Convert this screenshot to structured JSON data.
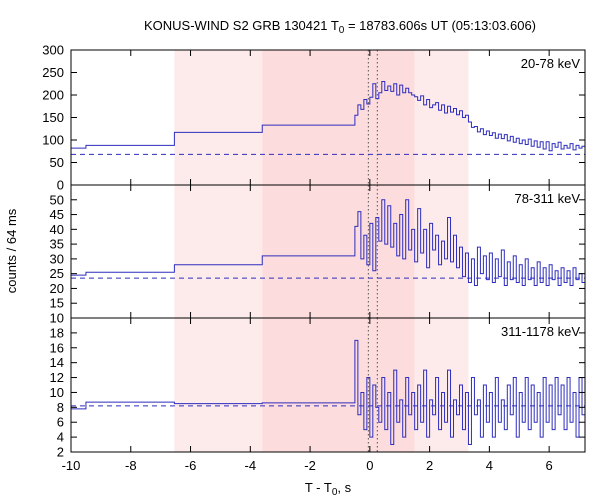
{
  "chart_data": {
    "type": "line",
    "title_parts": [
      "KONUS-WIND S2 GRB 130421 T",
      "0",
      " = 18783.606s UT (05:13:03.606)"
    ],
    "xlabel_parts": [
      "T - T",
      "0",
      ", s"
    ],
    "ylabel": "counts / 64 ms",
    "xlim": [
      -10,
      7.2
    ],
    "x_ticks": [
      -10,
      -8,
      -6,
      -4,
      -2,
      0,
      2,
      4,
      6
    ],
    "x_tick_labels": [
      "-10",
      "-8",
      "-6",
      "-4",
      "-2",
      "0",
      "2",
      "4",
      "6"
    ],
    "intervals": [
      {
        "start": -6.54,
        "end": -3.6,
        "fill": "#fdeaea"
      },
      {
        "start": -3.6,
        "end": 1.5,
        "fill": "#fcdcdc"
      },
      {
        "start": 1.5,
        "end": 3.3,
        "fill": "#fdeaea"
      }
    ],
    "markers": [
      -0.05,
      0.25
    ],
    "colors": {
      "series": "#2e2ebf",
      "background_line": "#2e2ebf",
      "marker": "#555555"
    },
    "panels": [
      {
        "label": "20-78 keV",
        "ylim": [
          0,
          300
        ],
        "y_ticks": [
          0,
          50,
          100,
          150,
          200,
          250,
          300
        ],
        "y_tick_labels": [
          "0",
          "50",
          "100",
          "150",
          "200",
          "250",
          "300"
        ],
        "background": 68,
        "coarse_steps": [
          [
            -10,
            82
          ],
          [
            -9.5,
            88
          ],
          [
            -6.54,
            117
          ],
          [
            -3.6,
            133
          ],
          [
            -0.5,
            133
          ]
        ],
        "series": [
          [
            -0.5,
            155
          ],
          [
            -0.4,
            178
          ],
          [
            -0.3,
            168
          ],
          [
            -0.2,
            190
          ],
          [
            -0.1,
            180
          ],
          [
            0.0,
            195
          ],
          [
            0.1,
            225
          ],
          [
            0.2,
            192
          ],
          [
            0.3,
            205
          ],
          [
            0.4,
            230
          ],
          [
            0.5,
            210
          ],
          [
            0.6,
            220
          ],
          [
            0.7,
            208
          ],
          [
            0.8,
            225
          ],
          [
            0.9,
            200
          ],
          [
            1.0,
            222
          ],
          [
            1.1,
            205
          ],
          [
            1.2,
            215
          ],
          [
            1.3,
            205
          ],
          [
            1.4,
            200
          ],
          [
            1.5,
            196
          ],
          [
            1.6,
            188
          ],
          [
            1.7,
            198
          ],
          [
            1.8,
            178
          ],
          [
            1.9,
            190
          ],
          [
            2.0,
            172
          ],
          [
            2.1,
            178
          ],
          [
            2.2,
            183
          ],
          [
            2.3,
            166
          ],
          [
            2.4,
            178
          ],
          [
            2.5,
            160
          ],
          [
            2.6,
            175
          ],
          [
            2.7,
            162
          ],
          [
            2.8,
            170
          ],
          [
            2.9,
            156
          ],
          [
            3.0,
            165
          ],
          [
            3.1,
            150
          ],
          [
            3.2,
            155
          ],
          [
            3.3,
            140
          ],
          [
            3.4,
            128
          ],
          [
            3.5,
            130
          ],
          [
            3.6,
            118
          ],
          [
            3.7,
            125
          ],
          [
            3.8,
            112
          ],
          [
            3.9,
            120
          ],
          [
            4.0,
            110
          ],
          [
            4.1,
            116
          ],
          [
            4.2,
            104
          ],
          [
            4.3,
            113
          ],
          [
            4.4,
            103
          ],
          [
            4.5,
            112
          ],
          [
            4.6,
            98
          ],
          [
            4.7,
            108
          ],
          [
            4.8,
            95
          ],
          [
            4.9,
            104
          ],
          [
            5.0,
            92
          ],
          [
            5.1,
            100
          ],
          [
            5.2,
            90
          ],
          [
            5.3,
            102
          ],
          [
            5.4,
            86
          ],
          [
            5.5,
            98
          ],
          [
            5.6,
            84
          ],
          [
            5.7,
            96
          ],
          [
            5.8,
            80
          ],
          [
            5.9,
            96
          ],
          [
            6.0,
            76
          ],
          [
            6.1,
            92
          ],
          [
            6.2,
            84
          ],
          [
            6.3,
            95
          ],
          [
            6.4,
            80
          ],
          [
            6.5,
            88
          ],
          [
            6.6,
            82
          ],
          [
            6.7,
            92
          ],
          [
            6.8,
            78
          ],
          [
            6.9,
            88
          ],
          [
            7.0,
            82
          ],
          [
            7.1,
            86
          ]
        ]
      },
      {
        "label": "78-311 keV",
        "ylim": [
          10,
          55
        ],
        "y_ticks": [
          10,
          15,
          20,
          25,
          30,
          35,
          40,
          45,
          50
        ],
        "y_tick_labels": [
          "10",
          "15",
          "20",
          "25",
          "30",
          "35",
          "40",
          "45",
          "50"
        ],
        "background": 23.5,
        "coarse_steps": [
          [
            -10,
            24.5
          ],
          [
            -9.5,
            25.5
          ],
          [
            -6.54,
            28
          ],
          [
            -3.6,
            31
          ],
          [
            -0.5,
            31
          ]
        ],
        "series": [
          [
            -0.5,
            41
          ],
          [
            -0.4,
            46
          ],
          [
            -0.3,
            30
          ],
          [
            -0.2,
            38
          ],
          [
            -0.1,
            28
          ],
          [
            0.0,
            42
          ],
          [
            0.1,
            26
          ],
          [
            0.2,
            44
          ],
          [
            0.3,
            36
          ],
          [
            0.4,
            50
          ],
          [
            0.5,
            35
          ],
          [
            0.6,
            48
          ],
          [
            0.7,
            34
          ],
          [
            0.8,
            42
          ],
          [
            0.9,
            31
          ],
          [
            1.0,
            45
          ],
          [
            1.1,
            30
          ],
          [
            1.2,
            50
          ],
          [
            1.3,
            33
          ],
          [
            1.4,
            40
          ],
          [
            1.5,
            29
          ],
          [
            1.6,
            47
          ],
          [
            1.7,
            32
          ],
          [
            1.8,
            40
          ],
          [
            1.9,
            27
          ],
          [
            2.0,
            42
          ],
          [
            2.1,
            33
          ],
          [
            2.2,
            38
          ],
          [
            2.3,
            28
          ],
          [
            2.4,
            36
          ],
          [
            2.5,
            30
          ],
          [
            2.6,
            44
          ],
          [
            2.7,
            29
          ],
          [
            2.8,
            38
          ],
          [
            2.9,
            27
          ],
          [
            3.0,
            34
          ],
          [
            3.1,
            24
          ],
          [
            3.2,
            32
          ],
          [
            3.3,
            22
          ],
          [
            3.4,
            30
          ],
          [
            3.5,
            21
          ],
          [
            3.6,
            34
          ],
          [
            3.7,
            25
          ],
          [
            3.8,
            31
          ],
          [
            3.9,
            23
          ],
          [
            4.0,
            32
          ],
          [
            4.1,
            22
          ],
          [
            4.2,
            30
          ],
          [
            4.3,
            24
          ],
          [
            4.4,
            33
          ],
          [
            4.5,
            21
          ],
          [
            4.6,
            29
          ],
          [
            4.7,
            23
          ],
          [
            4.8,
            31
          ],
          [
            4.9,
            22
          ],
          [
            5.0,
            28
          ],
          [
            5.1,
            21
          ],
          [
            5.2,
            30
          ],
          [
            5.3,
            23
          ],
          [
            5.4,
            27
          ],
          [
            5.5,
            21
          ],
          [
            5.6,
            29
          ],
          [
            5.7,
            22
          ],
          [
            5.8,
            27
          ],
          [
            5.9,
            21
          ],
          [
            6.0,
            28
          ],
          [
            6.1,
            23
          ],
          [
            6.2,
            26
          ],
          [
            6.3,
            21
          ],
          [
            6.4,
            27
          ],
          [
            6.5,
            22
          ],
          [
            6.6,
            26
          ],
          [
            6.7,
            21
          ],
          [
            6.8,
            27
          ],
          [
            6.9,
            23
          ],
          [
            7.0,
            25
          ],
          [
            7.1,
            22
          ]
        ]
      },
      {
        "label": "311-1178 keV",
        "ylim": [
          2,
          20
        ],
        "y_ticks": [
          2,
          4,
          6,
          8,
          10,
          12,
          14,
          16,
          18
        ],
        "y_tick_labels": [
          "2",
          "4",
          "6",
          "8",
          "10",
          "12",
          "14",
          "16",
          "18"
        ],
        "background": 8.2,
        "coarse_steps": [
          [
            -10,
            7.8
          ],
          [
            -9.5,
            8.7
          ],
          [
            -6.54,
            8.5
          ],
          [
            -3.6,
            8.6
          ],
          [
            -0.5,
            8.6
          ]
        ],
        "series": [
          [
            -0.5,
            17
          ],
          [
            -0.4,
            7
          ],
          [
            -0.3,
            10
          ],
          [
            -0.2,
            5
          ],
          [
            -0.1,
            12
          ],
          [
            0.0,
            4
          ],
          [
            0.1,
            11
          ],
          [
            0.2,
            8
          ],
          [
            0.3,
            6
          ],
          [
            0.4,
            12
          ],
          [
            0.5,
            5
          ],
          [
            0.6,
            10
          ],
          [
            0.7,
            3
          ],
          [
            0.8,
            13
          ],
          [
            0.9,
            6
          ],
          [
            1.0,
            9
          ],
          [
            1.1,
            4
          ],
          [
            1.2,
            12
          ],
          [
            1.3,
            7
          ],
          [
            1.4,
            10
          ],
          [
            1.5,
            5
          ],
          [
            1.6,
            11
          ],
          [
            1.7,
            6
          ],
          [
            1.8,
            13
          ],
          [
            1.9,
            4
          ],
          [
            2.0,
            9
          ],
          [
            2.1,
            7
          ],
          [
            2.2,
            12
          ],
          [
            2.3,
            5
          ],
          [
            2.4,
            10
          ],
          [
            2.5,
            6
          ],
          [
            2.6,
            13
          ],
          [
            2.7,
            4
          ],
          [
            2.8,
            9
          ],
          [
            2.9,
            7
          ],
          [
            3.0,
            11
          ],
          [
            3.1,
            5
          ],
          [
            3.2,
            10
          ],
          [
            3.3,
            3
          ],
          [
            3.4,
            12
          ],
          [
            3.5,
            7
          ],
          [
            3.6,
            9
          ],
          [
            3.7,
            4
          ],
          [
            3.8,
            11
          ],
          [
            3.9,
            6
          ],
          [
            4.0,
            10
          ],
          [
            4.1,
            4
          ],
          [
            4.2,
            12
          ],
          [
            4.3,
            6
          ],
          [
            4.4,
            9
          ],
          [
            4.5,
            5
          ],
          [
            4.6,
            11
          ],
          [
            4.7,
            7
          ],
          [
            4.8,
            12
          ],
          [
            4.9,
            4
          ],
          [
            5.0,
            10
          ],
          [
            5.1,
            6
          ],
          [
            5.2,
            12
          ],
          [
            5.3,
            5
          ],
          [
            5.4,
            11
          ],
          [
            5.5,
            6
          ],
          [
            5.6,
            10
          ],
          [
            5.7,
            4
          ],
          [
            5.8,
            12
          ],
          [
            5.9,
            6
          ],
          [
            6.0,
            11
          ],
          [
            6.1,
            5
          ],
          [
            6.2,
            12
          ],
          [
            6.3,
            7
          ],
          [
            6.4,
            11
          ],
          [
            6.5,
            5
          ],
          [
            6.6,
            12
          ],
          [
            6.7,
            6
          ],
          [
            6.8,
            10
          ],
          [
            6.9,
            4
          ],
          [
            7.0,
            12
          ],
          [
            7.1,
            7
          ]
        ]
      }
    ]
  }
}
